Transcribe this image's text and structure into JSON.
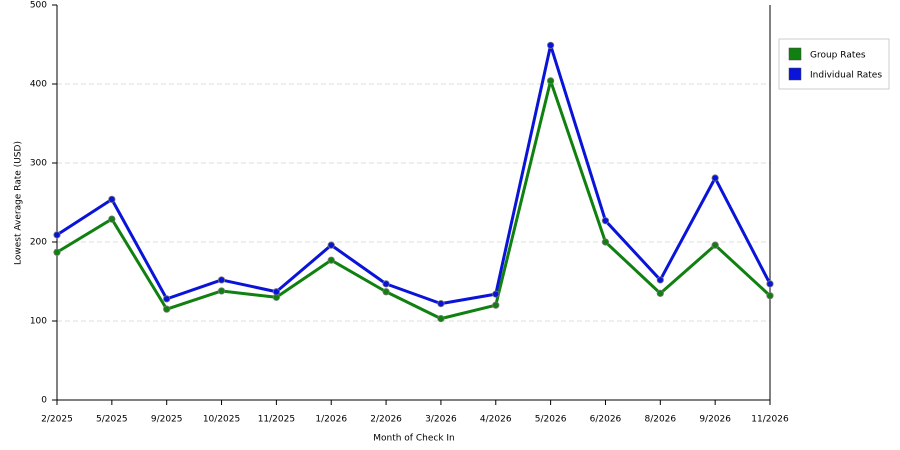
{
  "chart_data": {
    "type": "line",
    "x_label": "Month of Check In",
    "y_label": "Lowest Average Rate (USD)",
    "categories": [
      "2/2025",
      "5/2025",
      "9/2025",
      "10/2025",
      "11/2025",
      "1/2026",
      "2/2026",
      "3/2026",
      "4/2026",
      "5/2026",
      "6/2026",
      "8/2026",
      "9/2026",
      "11/2026"
    ],
    "series": [
      {
        "name": "Group Rates",
        "color": "#108010",
        "values": [
          187,
          229,
          115,
          138,
          130,
          177,
          137,
          103,
          120,
          404,
          200,
          135,
          196,
          132
        ]
      },
      {
        "name": "Individual Rates",
        "color": "#0a14d8",
        "values": [
          209,
          254,
          128,
          152,
          137,
          196,
          147,
          122,
          134,
          449,
          227,
          152,
          281,
          147
        ]
      }
    ],
    "ylim": [
      0,
      500
    ],
    "yticks": [
      0,
      100,
      200,
      300,
      400,
      500
    ],
    "grid": true,
    "legend": "right"
  }
}
